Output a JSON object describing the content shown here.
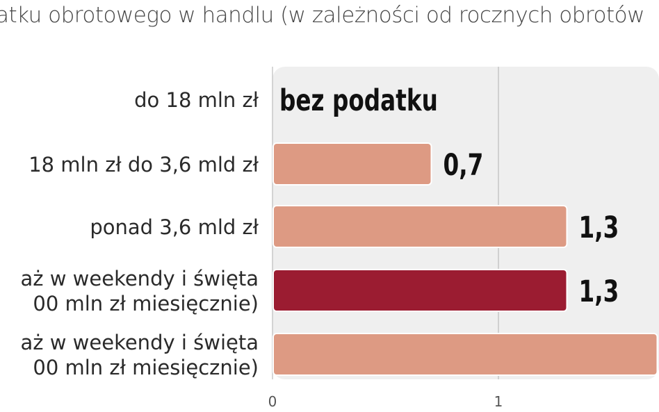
{
  "title": "atku obrotowego w handlu (w zależności od rocznych obrotów",
  "colors": {
    "bar_light": "#dd9a83",
    "bar_dark": "#9b1c31",
    "plot_bg": "#efefef",
    "gridline": "#bcbcbc",
    "label": "#2a2a2a",
    "value": "#111111"
  },
  "chart_data": {
    "type": "bar",
    "orientation": "horizontal",
    "title": "atku obrotowego w handlu (w zależności od rocznych obrotów",
    "xlabel": "",
    "ylabel": "",
    "xlim": [
      0,
      1.7
    ],
    "xticks": [
      "0",
      "1"
    ],
    "grid": true,
    "categories": [
      [
        "do 18 mln zł"
      ],
      [
        "18 mln zł do 3,6 mld zł"
      ],
      [
        "ponad 3,6 mld zł"
      ],
      [
        "aż w weekendy i święta",
        "00 mln zł miesięcznie)"
      ],
      [
        "aż w weekendy i święta",
        "00 mln zł miesięcznie)"
      ]
    ],
    "values": [
      0,
      0.7,
      1.3,
      1.3,
      1.7
    ],
    "value_labels": [
      "bez podatku",
      "0,7",
      "1,3",
      "1,3",
      ""
    ],
    "highlight": [
      false,
      false,
      false,
      true,
      false
    ]
  }
}
